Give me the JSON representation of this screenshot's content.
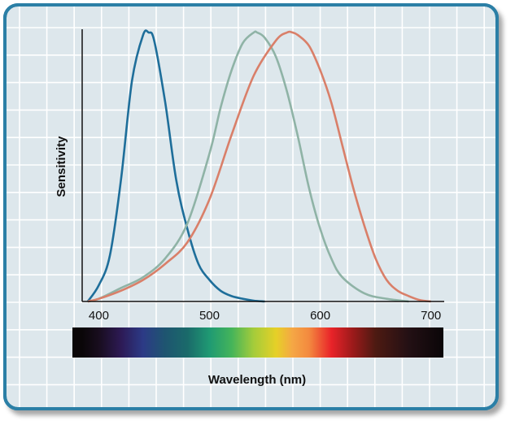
{
  "chart_data": {
    "type": "line",
    "xlabel": "Wavelength (nm)",
    "ylabel": "Sensitivity",
    "x_ticks": [
      "400",
      "500",
      "600",
      "700"
    ],
    "xlim": [
      385,
      712
    ],
    "ylim": [
      0,
      1
    ],
    "grid": true,
    "legend": "none",
    "series": [
      {
        "color": "#1e6e9a",
        "x": [
          390,
          400,
          410,
          420,
          430,
          440,
          445,
          450,
          460,
          470,
          480,
          490,
          500,
          510,
          520,
          530,
          540,
          550
        ],
        "values": [
          0.0,
          0.06,
          0.17,
          0.45,
          0.82,
          0.99,
          1.0,
          0.97,
          0.74,
          0.45,
          0.27,
          0.14,
          0.08,
          0.04,
          0.02,
          0.01,
          0.003,
          0.0
        ]
      },
      {
        "color": "#8fb3a6",
        "x": [
          390,
          400,
          420,
          440,
          460,
          480,
          500,
          510,
          520,
          530,
          540,
          543,
          550,
          560,
          570,
          580,
          590,
          600,
          610,
          620,
          640,
          660,
          680
        ],
        "values": [
          0.0,
          0.01,
          0.05,
          0.09,
          0.16,
          0.29,
          0.55,
          0.72,
          0.86,
          0.96,
          1.0,
          1.0,
          0.98,
          0.91,
          0.78,
          0.61,
          0.42,
          0.27,
          0.16,
          0.09,
          0.03,
          0.01,
          0.0
        ]
      },
      {
        "color": "#d97f69",
        "x": [
          390,
          400,
          420,
          440,
          460,
          480,
          500,
          520,
          540,
          560,
          570,
          575,
          580,
          590,
          600,
          610,
          620,
          630,
          640,
          650,
          660,
          670,
          680,
          690,
          700
        ],
        "values": [
          0.0,
          0.01,
          0.04,
          0.08,
          0.14,
          0.22,
          0.38,
          0.62,
          0.84,
          0.97,
          1.0,
          1.0,
          0.99,
          0.95,
          0.86,
          0.74,
          0.58,
          0.42,
          0.28,
          0.16,
          0.08,
          0.04,
          0.02,
          0.005,
          0.0
        ]
      }
    ],
    "spectrum_colors": [
      {
        "nm": 385,
        "color": "#0a0608"
      },
      {
        "nm": 400,
        "color": "#180d1e"
      },
      {
        "nm": 420,
        "color": "#2d1a55"
      },
      {
        "nm": 440,
        "color": "#2c3a86"
      },
      {
        "nm": 460,
        "color": "#1e5570"
      },
      {
        "nm": 480,
        "color": "#1a6a6a"
      },
      {
        "nm": 500,
        "color": "#1f9a73"
      },
      {
        "nm": 520,
        "color": "#44b45a"
      },
      {
        "nm": 540,
        "color": "#a5cc3a"
      },
      {
        "nm": 560,
        "color": "#e6d027"
      },
      {
        "nm": 575,
        "color": "#f5a745"
      },
      {
        "nm": 590,
        "color": "#f3893f"
      },
      {
        "nm": 610,
        "color": "#e92329"
      },
      {
        "nm": 630,
        "color": "#9a1a1a"
      },
      {
        "nm": 650,
        "color": "#4d1a12"
      },
      {
        "nm": 680,
        "color": "#231014"
      },
      {
        "nm": 712,
        "color": "#0a0608"
      }
    ],
    "colors": {
      "frame_border": "#2b7fa6",
      "frame_fill": "#dde7ec",
      "grid": "#ffffff"
    }
  }
}
